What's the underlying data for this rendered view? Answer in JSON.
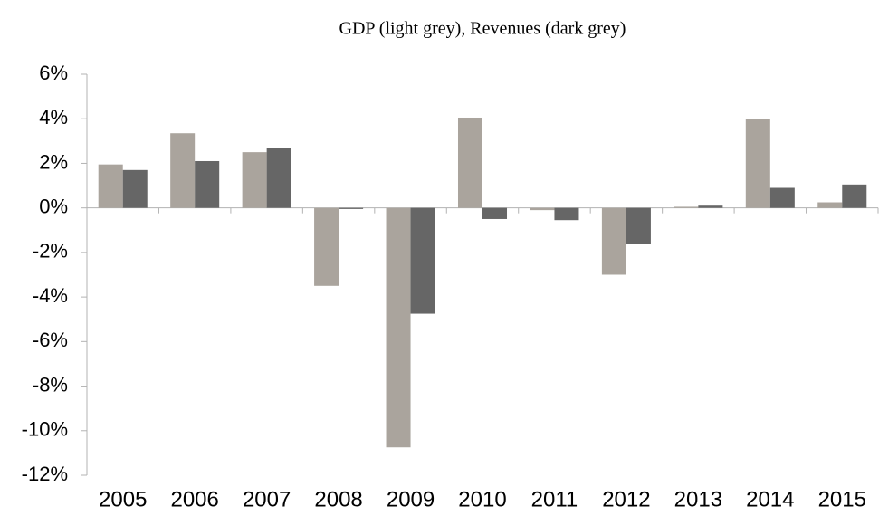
{
  "chart_data": {
    "type": "bar",
    "title": "GDP (light grey), Revenues (dark grey)",
    "categories": [
      "2005",
      "2006",
      "2007",
      "2008",
      "2009",
      "2010",
      "2011",
      "2012",
      "2013",
      "2014",
      "2015"
    ],
    "series": [
      {
        "color": "#aaa49d",
        "values": [
          1.95,
          3.35,
          2.5,
          -3.5,
          -10.75,
          4.05,
          -0.1,
          -3.0,
          0.05,
          4.0,
          0.25
        ]
      },
      {
        "color": "#666666",
        "values": [
          1.7,
          2.1,
          2.7,
          -0.05,
          -4.75,
          -0.5,
          -0.55,
          -1.6,
          0.1,
          0.9,
          1.05
        ]
      }
    ],
    "ylim": [
      -12,
      6
    ],
    "yticks": [
      {
        "value": -12,
        "label": "-12%"
      },
      {
        "value": -10,
        "label": "-10%"
      },
      {
        "value": -8,
        "label": "-8%"
      },
      {
        "value": -6,
        "label": "-6%"
      },
      {
        "value": -4,
        "label": "-4%"
      },
      {
        "value": -2,
        "label": "-2%"
      },
      {
        "value": 0,
        "label": "0%"
      },
      {
        "value": 2,
        "label": "2%"
      },
      {
        "value": 4,
        "label": "4%"
      },
      {
        "value": 6,
        "label": "6%"
      }
    ],
    "grid": false
  }
}
